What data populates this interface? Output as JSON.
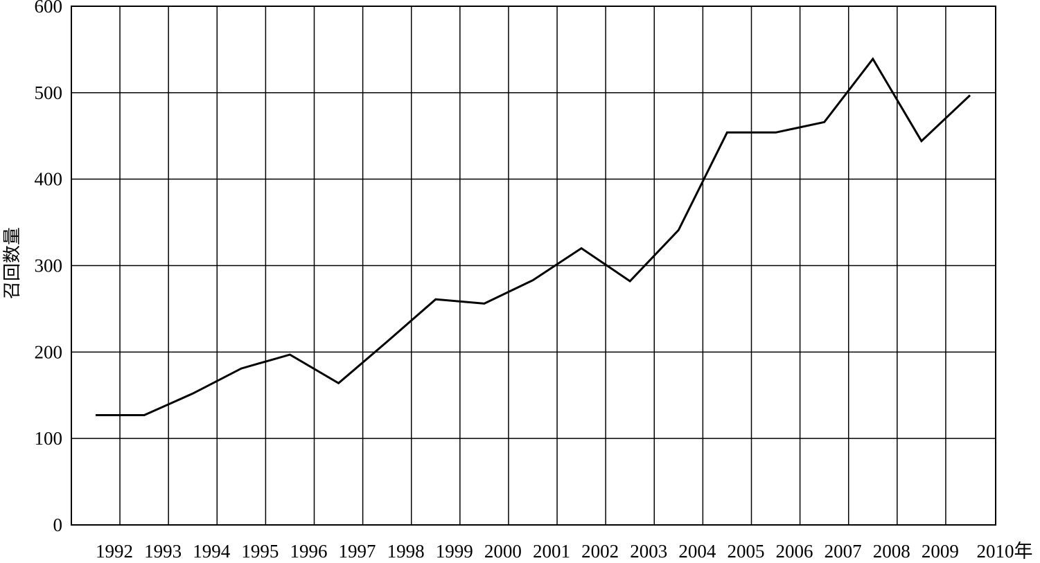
{
  "chart_data": {
    "type": "line",
    "title": "",
    "xlabel": "",
    "ylabel": "召回数量",
    "x_unit_suffix": "年",
    "x": [
      "1992",
      "1993",
      "1994",
      "1995",
      "1996",
      "1997",
      "1998",
      "1999",
      "2000",
      "2001",
      "2002",
      "2003",
      "2004",
      "2005",
      "2006",
      "2007",
      "2008",
      "2009",
      "2010"
    ],
    "ylim": [
      0,
      600
    ],
    "yticks": [
      0,
      100,
      200,
      300,
      400,
      500,
      600
    ],
    "grid": true,
    "legend": "none",
    "line_color": "#000000",
    "series": [
      {
        "values": [
          127,
          127,
          152,
          181,
          197,
          164,
          212,
          261,
          256,
          283,
          320,
          282,
          341,
          454,
          454,
          466,
          539,
          444,
          497
        ]
      }
    ]
  }
}
